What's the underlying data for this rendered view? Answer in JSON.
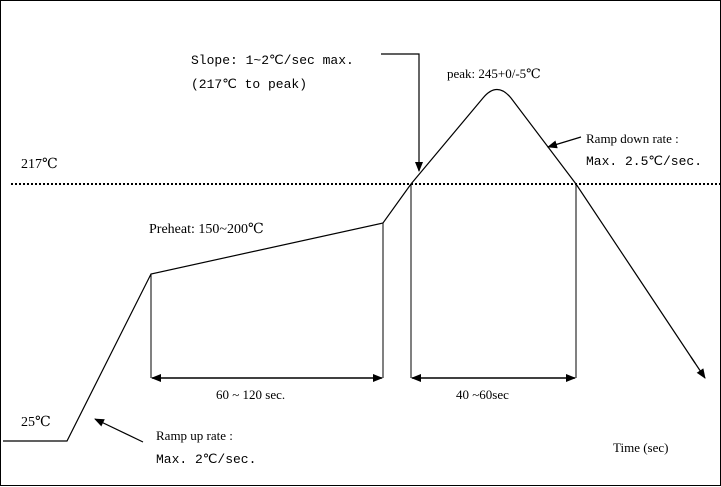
{
  "diagram": {
    "temp_line_label": "217℃",
    "start_temp_label": "25℃",
    "preheat_label": "Preheat: 150~200℃",
    "peak_label": "peak: 245+0/-5℃",
    "slope_line1": "Slope: 1~2℃/sec max.",
    "slope_line2": "(217℃ to peak)",
    "ramp_down_line1": "Ramp down rate :",
    "ramp_down_line2": "Max. 2.5℃/sec.",
    "ramp_up_line1": "Ramp up rate :",
    "ramp_up_line2": "Max. 2℃/sec.",
    "preheat_time_label": "60 ~ 120 sec.",
    "reflow_time_label": "40 ~60sec",
    "time_axis_label": "Time (sec)"
  }
}
